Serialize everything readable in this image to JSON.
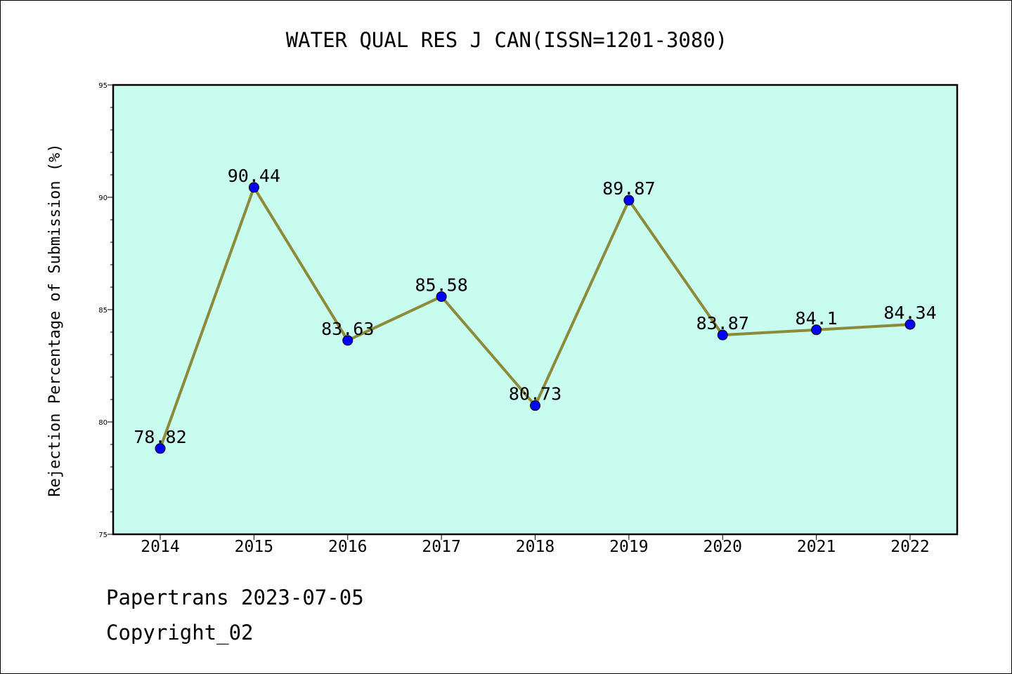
{
  "chart_data": {
    "type": "line",
    "title": "WATER QUAL RES J CAN(ISSN=1201-3080)",
    "xlabel": "",
    "ylabel": "Rejection Percentage of Submission (%)",
    "categories": [
      "2014",
      "2015",
      "2016",
      "2017",
      "2018",
      "2019",
      "2020",
      "2021",
      "2022"
    ],
    "values": [
      78.82,
      90.44,
      83.63,
      85.58,
      80.73,
      89.87,
      83.87,
      84.1,
      84.34
    ],
    "data_labels": [
      "78.82",
      "90.44",
      "83.63",
      "85.58",
      "80.73",
      "89.87",
      "83.87",
      "84.1",
      "84.34"
    ],
    "ylim": [
      75,
      95
    ],
    "yticks": [
      75,
      80,
      85,
      90,
      95
    ],
    "grid": false,
    "colors": {
      "plot_background": "#c8fcee",
      "line": "#8b8b3a",
      "marker": "#0000ff"
    }
  },
  "footer": {
    "line1": "Papertrans 2023-07-05",
    "line2": "Copyright_02"
  }
}
